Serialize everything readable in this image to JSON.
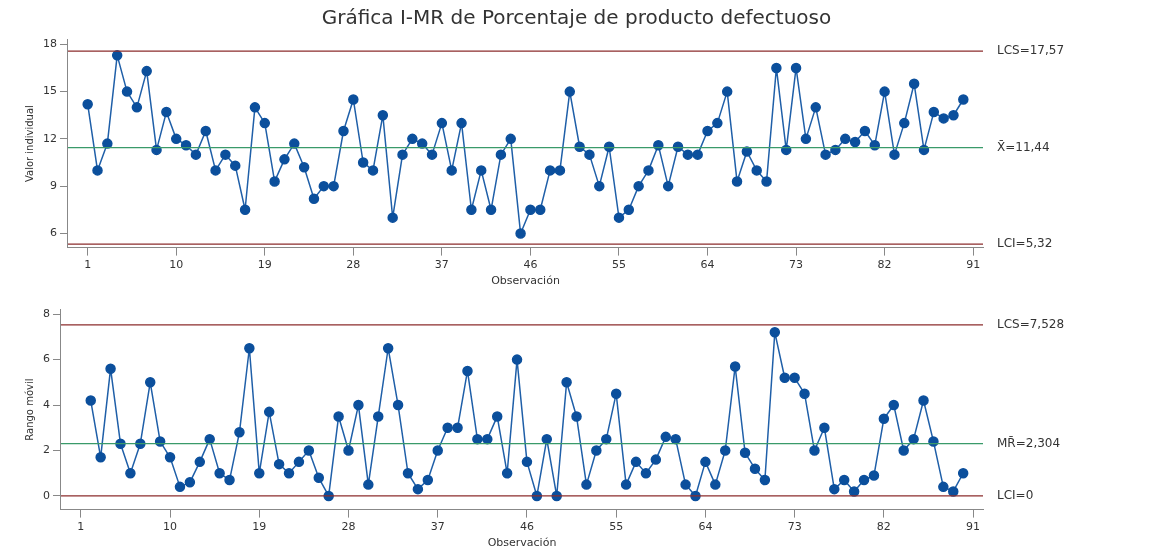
{
  "chart_data": [
    {
      "type": "line",
      "title": "Gráfica I-MR de Porcentaje de producto defectuoso",
      "xlabel": "Observación",
      "ylabel": "Valor individual",
      "x": [
        1,
        2,
        3,
        4,
        5,
        6,
        7,
        8,
        9,
        10,
        11,
        12,
        13,
        14,
        15,
        16,
        17,
        18,
        19,
        20,
        21,
        22,
        23,
        24,
        25,
        26,
        27,
        28,
        29,
        30,
        31,
        32,
        33,
        34,
        35,
        36,
        37,
        38,
        39,
        40,
        41,
        42,
        43,
        44,
        45,
        46,
        47,
        48,
        49,
        50,
        51,
        52,
        53,
        54,
        55,
        56,
        57,
        58,
        59,
        60,
        61,
        62,
        63,
        64,
        65,
        66,
        67,
        68,
        69,
        70,
        71,
        72,
        73,
        74,
        75,
        76,
        77,
        78,
        79,
        80,
        81,
        82,
        83,
        84,
        85,
        86,
        87,
        88,
        89,
        90
      ],
      "series": [
        {
          "color": "#1f5fa8",
          "values": [
            14.2,
            10,
            11.7,
            17.3,
            15,
            14,
            16.3,
            11.3,
            13.7,
            12,
            11.6,
            11,
            12.5,
            10,
            11,
            10.3,
            7.5,
            14,
            13,
            9.3,
            10.7,
            11.7,
            10.2,
            8.2,
            9,
            9,
            12.5,
            14.5,
            10.5,
            10,
            13.5,
            7,
            11,
            12,
            11.7,
            11,
            13,
            10,
            13,
            7.5,
            10,
            7.5,
            11,
            12,
            6,
            7.5,
            7.5,
            10,
            10,
            15,
            11.5,
            11,
            9,
            11.5,
            7,
            7.5,
            9,
            10,
            11.6,
            9,
            11.5,
            11,
            11,
            12.5,
            13,
            15,
            9.3,
            11.2,
            10,
            9.3,
            16.5,
            11.3,
            16.5,
            12,
            14,
            11,
            11.3,
            12,
            11.8,
            12.5,
            11.6,
            15,
            11,
            13,
            15.5,
            11.3,
            13.7,
            13.3,
            13.5,
            14.5
          ]
        }
      ],
      "xlim": [
        -1,
        92
      ],
      "xticks": [
        1,
        10,
        19,
        28,
        37,
        46,
        55,
        64,
        73,
        82,
        91
      ],
      "ylim": [
        5.1,
        18.3
      ],
      "yticks": [
        6,
        9,
        12,
        15,
        18
      ],
      "ref_lines": [
        {
          "axis": "y",
          "value": 17.57,
          "label": "LCS=17,57",
          "color": "#8b2c2c"
        },
        {
          "axis": "y",
          "value": 11.44,
          "label": "X̄=11,44",
          "color": "#3a9a6a"
        },
        {
          "axis": "y",
          "value": 5.32,
          "label": "LCI=5,32",
          "color": "#8b2c2c"
        }
      ],
      "marker": "circle",
      "grid": false,
      "legend": false
    },
    {
      "type": "line",
      "xlabel": "Observación",
      "ylabel": "Rango móvil",
      "x": [
        2,
        3,
        4,
        5,
        6,
        7,
        8,
        9,
        10,
        11,
        12,
        13,
        14,
        15,
        16,
        17,
        18,
        19,
        20,
        21,
        22,
        23,
        24,
        25,
        26,
        27,
        28,
        29,
        30,
        31,
        32,
        33,
        34,
        35,
        36,
        37,
        38,
        39,
        40,
        41,
        42,
        43,
        44,
        45,
        46,
        47,
        48,
        49,
        50,
        51,
        52,
        53,
        54,
        55,
        56,
        57,
        58,
        59,
        60,
        61,
        62,
        63,
        64,
        65,
        66,
        67,
        68,
        69,
        70,
        71,
        72,
        73,
        74,
        75,
        76,
        77,
        78,
        79,
        80,
        81,
        82,
        83,
        84,
        85,
        86,
        87,
        88,
        89,
        90
      ],
      "series": [
        {
          "color": "#1f5fa8",
          "values": [
            4.2,
            1.7,
            5.6,
            2.3,
            1,
            2.3,
            5,
            2.4,
            1.7,
            0.4,
            0.6,
            1.5,
            2.5,
            1,
            0.7,
            2.8,
            6.5,
            1,
            3.7,
            1.4,
            1,
            1.5,
            2,
            0.8,
            0,
            3.5,
            2,
            4,
            0.5,
            3.5,
            6.5,
            4,
            1,
            0.3,
            0.7,
            2,
            3,
            3,
            5.5,
            2.5,
            2.5,
            3.5,
            1,
            6,
            1.5,
            0,
            2.5,
            0,
            5,
            3.5,
            0.5,
            2,
            2.5,
            4.5,
            0.5,
            1.5,
            1,
            1.6,
            2.6,
            2.5,
            0.5,
            0,
            1.5,
            0.5,
            2,
            5.7,
            1.9,
            1.2,
            0.7,
            7.2,
            5.2,
            5.2,
            4.5,
            2,
            3,
            0.3,
            0.7,
            0.2,
            0.7,
            0.9,
            3.4,
            4,
            2,
            2.5,
            4.2,
            2.4,
            0.4,
            0.2,
            1
          ]
        }
      ],
      "xlim": [
        -1,
        92
      ],
      "xticks": [
        1,
        10,
        19,
        28,
        37,
        46,
        55,
        64,
        73,
        82,
        91
      ],
      "ylim": [
        -0.6,
        8.2
      ],
      "yticks": [
        0,
        2,
        4,
        6,
        8
      ],
      "ref_lines": [
        {
          "axis": "y",
          "value": 7.528,
          "label": "LCS=7,528",
          "color": "#8b2c2c"
        },
        {
          "axis": "y",
          "value": 2.304,
          "label": "MR̄=2,304",
          "color": "#3a9a6a"
        },
        {
          "axis": "y",
          "value": 0,
          "label": "LCI=0",
          "color": "#8b2c2c"
        }
      ],
      "marker": "circle",
      "grid": false,
      "legend": false
    }
  ]
}
